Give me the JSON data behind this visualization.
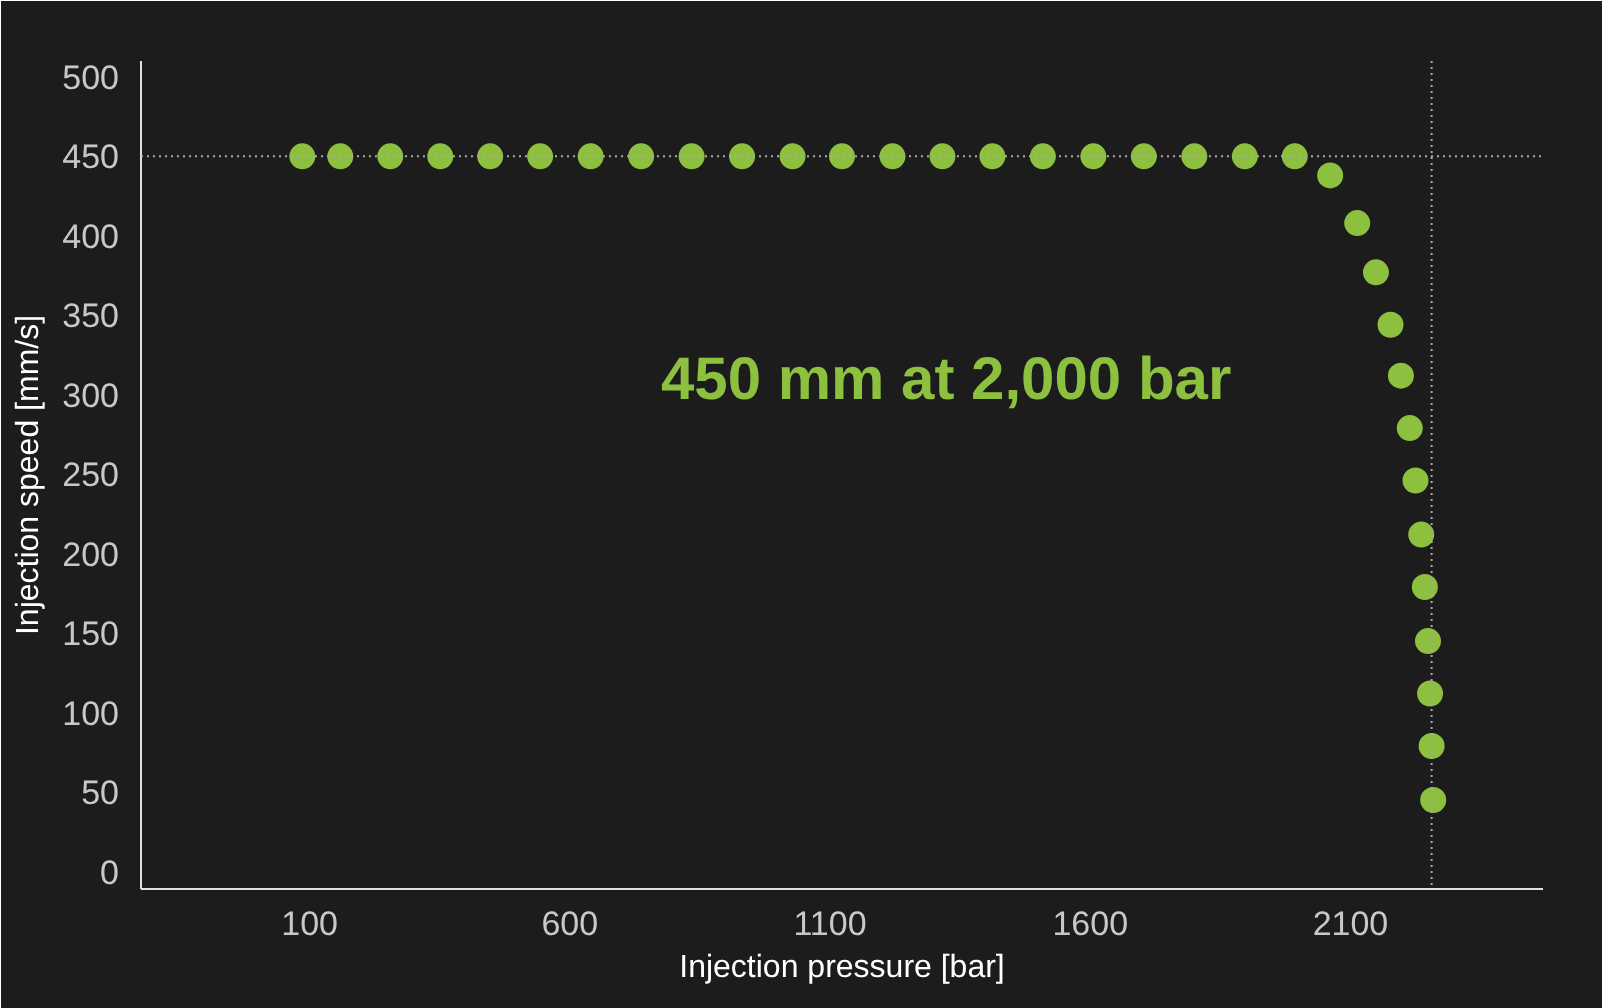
{
  "chart_data": {
    "type": "scatter",
    "xlabel": "Injection pressure [bar]",
    "ylabel": "Injection speed [mm/s]",
    "annotations": [
      "450 mm at 2,000 bar"
    ],
    "xlim": [
      -224,
      2470
    ],
    "ylim": [
      -11,
      510
    ],
    "xticks": [
      100,
      600,
      1100,
      1600,
      2100
    ],
    "yticks": [
      0,
      50,
      100,
      150,
      200,
      250,
      300,
      350,
      400,
      450,
      500
    ],
    "grid": false,
    "marker": "circle",
    "ref_lines": [
      {
        "axis": "y",
        "value": 450,
        "label": null,
        "color": "#aaaaaa",
        "line_style": "dotted"
      },
      {
        "axis": "x",
        "value": 2256,
        "label": null,
        "color": "#aaaaaa",
        "line_style": "dotted"
      }
    ],
    "series": [
      {
        "color": "#8dc03f",
        "x": [
          86,
          159,
          255,
          351,
          447,
          543,
          640,
          737,
          834,
          931,
          1028,
          1123,
          1220,
          1316,
          1412,
          1509,
          1606,
          1703,
          1800,
          1897,
          1993,
          2061,
          2113,
          2149,
          2177,
          2197,
          2214,
          2225,
          2236,
          2243,
          2249,
          2253,
          2256,
          2259
        ],
        "values": [
          450,
          450,
          450,
          450,
          450,
          450,
          450,
          450,
          450,
          450,
          450,
          450,
          450,
          450,
          450,
          450,
          450,
          450,
          450,
          450,
          450,
          438,
          408,
          377,
          344,
          312,
          279,
          246,
          212,
          179,
          145,
          112,
          79,
          45
        ]
      }
    ]
  }
}
